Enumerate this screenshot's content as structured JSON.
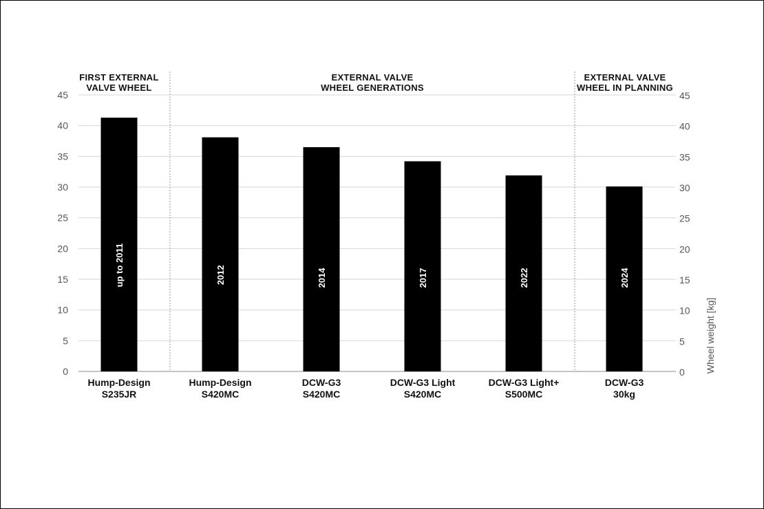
{
  "chart_data": {
    "type": "bar",
    "categories": [
      [
        "Hump-Design",
        "S235JR"
      ],
      [
        "Hump-Design",
        "S420MC"
      ],
      [
        "DCW-G3",
        "S420MC"
      ],
      [
        "DCW-G3 Light",
        "S420MC"
      ],
      [
        "DCW-G3 Light+",
        "S500MC"
      ],
      [
        "DCW-G3",
        "30kg"
      ]
    ],
    "values": [
      41.3,
      38.1,
      36.5,
      34.2,
      31.9,
      30.1
    ],
    "bar_labels": [
      "up to 2011",
      "2012",
      "2014",
      "2017",
      "2022",
      "2024"
    ],
    "ylabel": "Wheel weight [kg]",
    "ylim": [
      0,
      45
    ],
    "yticks": [
      0,
      5,
      10,
      15,
      20,
      25,
      30,
      35,
      40,
      45
    ],
    "grid": true,
    "bar_color": "#000000",
    "groups": [
      {
        "lines": [
          "FIRST EXTERNAL",
          "VALVE WHEEL"
        ],
        "from": 0,
        "to": 0
      },
      {
        "lines": [
          "EXTERNAL VALVE",
          "WHEEL GENERATIONS"
        ],
        "from": 1,
        "to": 4
      },
      {
        "lines": [
          "EXTERNAL VALVE",
          "WHEEL IN PLANNING"
        ],
        "from": 5,
        "to": 5
      }
    ]
  }
}
